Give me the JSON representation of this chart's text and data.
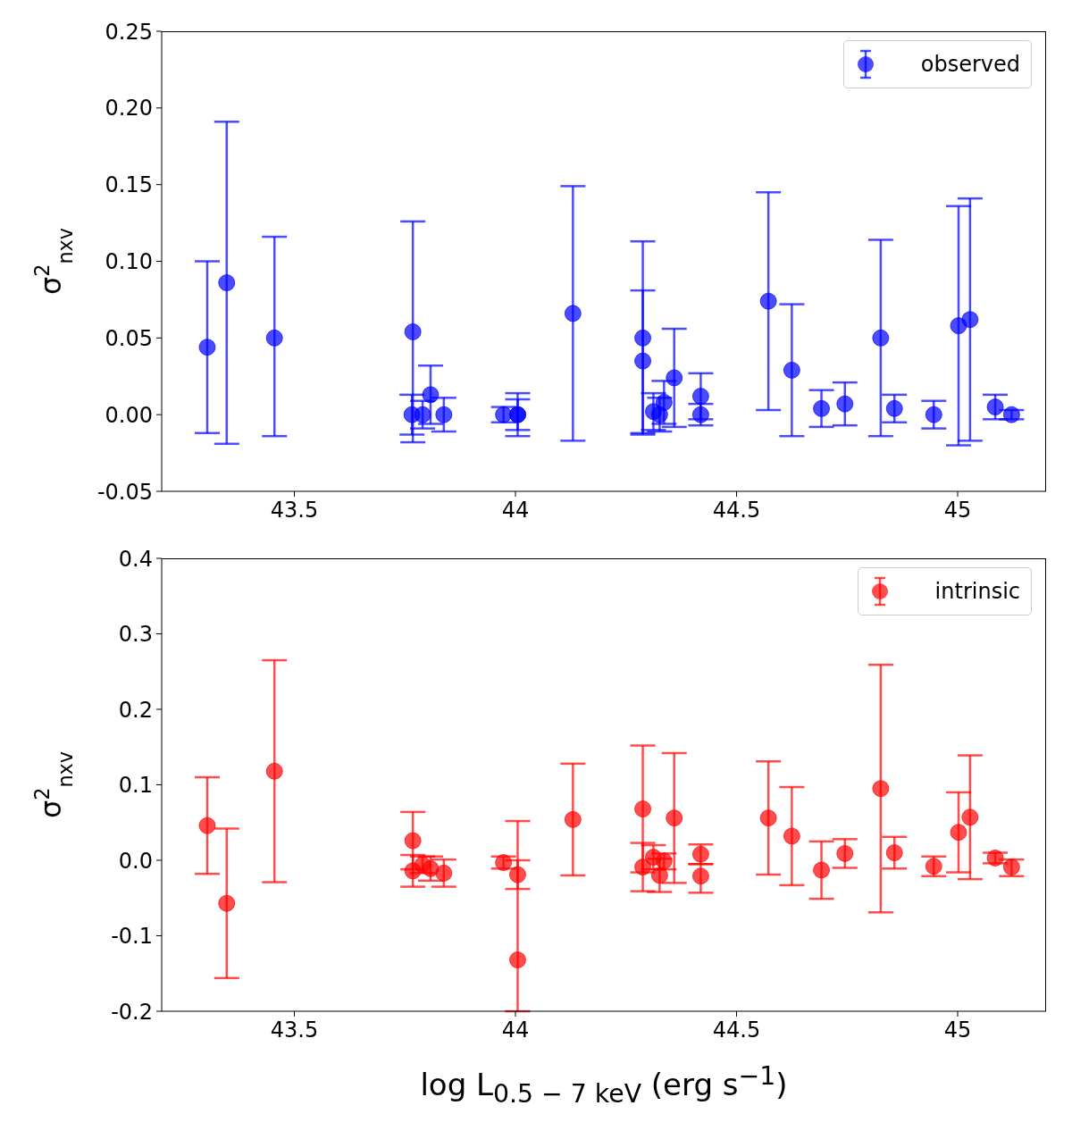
{
  "chart_data": [
    {
      "type": "scatter",
      "ylabel": "σ$^{2}$$_{nxv}$",
      "xlim": [
        43.2,
        45.2
      ],
      "xticks": [
        43.5,
        44,
        44.5,
        45
      ],
      "ylim": [
        -0.05,
        0.25
      ],
      "yticks": [
        -0.05,
        {
          "value": 0,
          "label": "0.00"
        },
        0.05,
        {
          "value": 0.1,
          "label": "0.10"
        },
        0.15,
        {
          "value": 0.2,
          "label": "0.20"
        },
        0.25
      ],
      "legend": "top right",
      "marker": "circle",
      "grid": false,
      "series": [
        {
          "name": "observed",
          "color": "#0000ff",
          "x": [
            43.303,
            43.347,
            43.455,
            43.768,
            43.766,
            43.79,
            43.808,
            43.838,
            43.973,
            44.005,
            44.005,
            44.13,
            44.288,
            44.288,
            44.312,
            44.326,
            44.336,
            44.359,
            44.419,
            44.419,
            44.572,
            44.625,
            44.692,
            44.745,
            44.826,
            44.857,
            44.946,
            45.002,
            45.028,
            45.085,
            45.122
          ],
          "values": [
            0.044,
            0.086,
            0.05,
            0.054,
            0,
            0,
            0.013,
            0,
            0,
            0,
            0,
            0.066,
            0.05,
            0.035,
            0.002,
            0,
            0.008,
            0.024,
            0.012,
            0,
            0.074,
            0.029,
            0.004,
            0.007,
            0.05,
            0.004,
            0,
            0.058,
            0.062,
            0.005,
            0
          ],
          "errors": [
            [
              -0.012,
              0.1
            ],
            [
              -0.019,
              0.191
            ],
            [
              -0.014,
              0.116
            ],
            [
              -0.018,
              0.126
            ],
            [
              -0.013,
              0.013
            ],
            [
              -0.009,
              0.009
            ],
            [
              -0.006,
              0.032
            ],
            [
              -0.011,
              0.011
            ],
            [
              -0.005,
              0.005
            ],
            [
              -0.014,
              0.014
            ],
            [
              -0.01,
              0.01
            ],
            [
              -0.017,
              0.149
            ],
            [
              -0.012,
              0.113
            ],
            [
              -0.013,
              0.081
            ],
            [
              -0.01,
              0.014
            ],
            [
              -0.011,
              0.011
            ],
            [
              -0.006,
              0.022
            ],
            [
              -0.008,
              0.056
            ],
            [
              -0.003,
              0.027
            ],
            [
              -0.007,
              0.007
            ],
            [
              0.003,
              0.145
            ],
            [
              -0.014,
              0.072
            ],
            [
              -0.008,
              0.016
            ],
            [
              -0.007,
              0.021
            ],
            [
              -0.014,
              0.114
            ],
            [
              -0.005,
              0.013
            ],
            [
              -0.009,
              0.009
            ],
            [
              -0.02,
              0.136
            ],
            [
              -0.017,
              0.141
            ],
            [
              -0.003,
              0.013
            ],
            [
              -0.003,
              0.003
            ]
          ]
        }
      ]
    },
    {
      "type": "scatter",
      "ylabel": "σ$^{2}$$_{nxv}$",
      "xlabel": "log L$_{0.5 − 7 keV}$ (erg s$^{−1}$)",
      "xlim": [
        43.2,
        45.2
      ],
      "xticks": [
        43.5,
        44,
        44.5,
        45
      ],
      "ylim": [
        -0.2,
        0.4
      ],
      "yticks": [
        -0.2,
        -0.1,
        {
          "value": 0,
          "label": "0.0"
        },
        0.1,
        0.2,
        0.3,
        0.4
      ],
      "legend": "top right",
      "marker": "circle",
      "grid": false,
      "series": [
        {
          "name": "intrinsic",
          "color": "#ff0000",
          "x": [
            43.303,
            43.347,
            43.455,
            43.768,
            43.768,
            43.79,
            43.808,
            43.838,
            43.973,
            44.005,
            44.005,
            44.13,
            44.288,
            44.288,
            44.312,
            44.326,
            44.336,
            44.359,
            44.419,
            44.419,
            44.572,
            44.625,
            44.692,
            44.745,
            44.826,
            44.857,
            44.946,
            45.002,
            45.028,
            45.085,
            45.122
          ],
          "values": [
            0.046,
            -0.057,
            0.118,
            0.026,
            -0.014,
            -0.006,
            -0.011,
            -0.017,
            -0.003,
            -0.019,
            -0.132,
            0.054,
            0.068,
            -0.009,
            0.004,
            -0.02,
            -0.001,
            0.056,
            0.008,
            -0.021,
            0.056,
            0.032,
            -0.013,
            0.009,
            0.095,
            0.01,
            -0.008,
            0.037,
            0.057,
            0.003,
            -0.009
          ],
          "errors": [
            [
              -0.018,
              0.11
            ],
            [
              -0.156,
              0.042
            ],
            [
              -0.029,
              0.265
            ],
            [
              -0.012,
              0.064
            ],
            [
              -0.035,
              0.007
            ],
            [
              -0.017,
              0.005
            ],
            [
              -0.027,
              0.005
            ],
            [
              -0.035,
              0.001
            ],
            [
              -0.011,
              0.005
            ],
            [
              -0.038,
              0
            ],
            [
              -0.2,
              0.052
            ],
            [
              -0.02,
              0.128
            ],
            [
              -0.016,
              0.152
            ],
            [
              -0.041,
              0.023
            ],
            [
              -0.012,
              0.02
            ],
            [
              -0.042,
              0.002
            ],
            [
              -0.012,
              0.009
            ],
            [
              -0.03,
              0.142
            ],
            [
              -0.005,
              0.021
            ],
            [
              -0.043,
              -0.005
            ],
            [
              -0.019,
              0.131
            ],
            [
              -0.033,
              0.097
            ],
            [
              -0.051,
              0.025
            ],
            [
              -0.01,
              0.028
            ],
            [
              -0.069,
              0.259
            ],
            [
              -0.011,
              0.031
            ],
            [
              -0.021,
              0.005
            ],
            [
              -0.016,
              0.09
            ],
            [
              -0.025,
              0.139
            ],
            [
              -0.004,
              0.01
            ],
            [
              -0.021,
              0.001
            ]
          ]
        }
      ]
    }
  ]
}
